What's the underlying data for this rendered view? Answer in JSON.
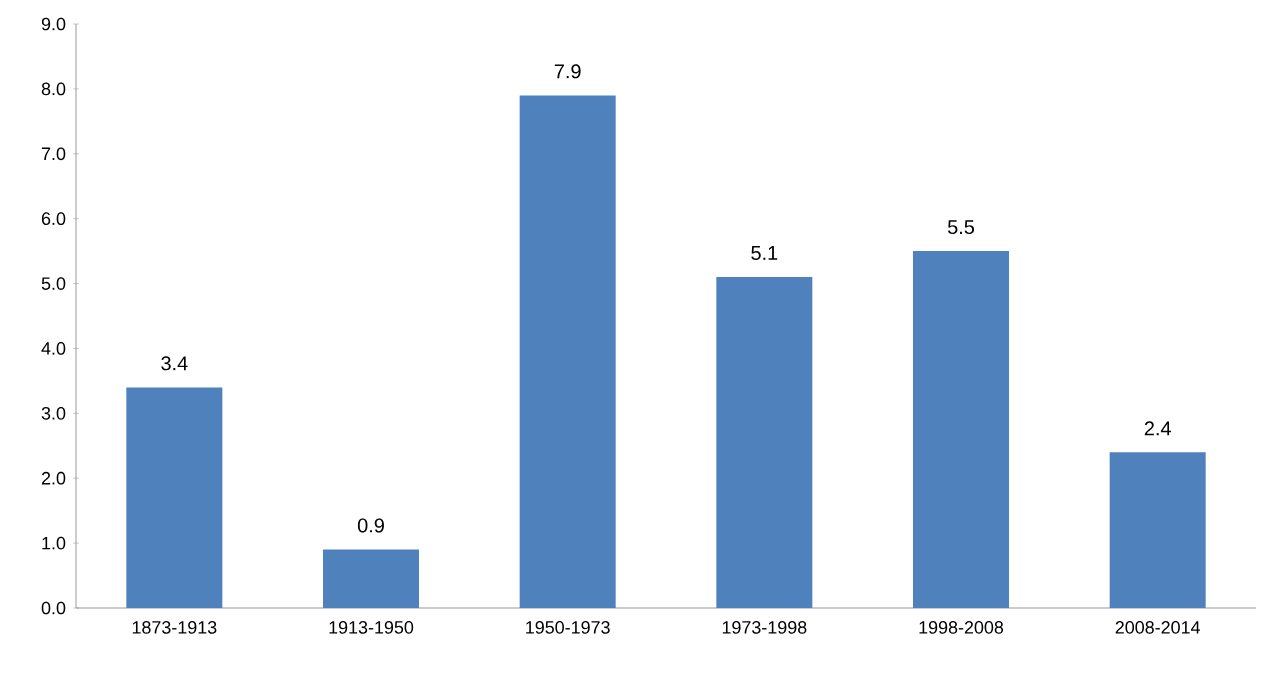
{
  "chart_data": {
    "type": "bar",
    "categories": [
      "1873-1913",
      "1913-1950",
      "1950-1973",
      "1973-1998",
      "1998-2008",
      "2008-2014"
    ],
    "values": [
      3.4,
      0.9,
      7.9,
      5.1,
      5.5,
      2.4
    ],
    "color": "#4f81bd",
    "data_labels": true,
    "ylim": [
      0,
      9
    ],
    "yticks": [
      {
        "value": 0,
        "label": "0.0"
      },
      {
        "value": 1,
        "label": "1.0"
      },
      {
        "value": 2,
        "label": "2.0"
      },
      {
        "value": 3,
        "label": "3.0"
      },
      {
        "value": 4,
        "label": "4.0"
      },
      {
        "value": 5,
        "label": "5.0"
      },
      {
        "value": 6,
        "label": "6.0"
      },
      {
        "value": 7,
        "label": "7.0"
      },
      {
        "value": 8,
        "label": "8.0"
      },
      {
        "value": 9,
        "label": "9.0"
      }
    ]
  }
}
